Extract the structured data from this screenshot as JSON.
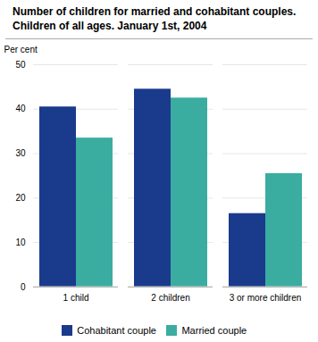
{
  "chart_data": {
    "type": "bar",
    "title": "Number of children for married and cohabitant couples.\nChildren of all ages. January 1st, 2004",
    "ylabel": "Per cent",
    "categories": [
      "1 child",
      "2 children",
      "3 or more children"
    ],
    "series": [
      {
        "name": "Cohabitant couple",
        "color": "#1a3a8c",
        "values": [
          40.5,
          44.5,
          16.5
        ]
      },
      {
        "name": "Married couple",
        "color": "#3aada0",
        "values": [
          33.5,
          42.5,
          25.5
        ]
      }
    ],
    "ylim": [
      0,
      50
    ],
    "yticks": [
      0,
      10,
      20,
      30,
      40,
      50
    ],
    "grid": true,
    "legend": "bottom"
  }
}
